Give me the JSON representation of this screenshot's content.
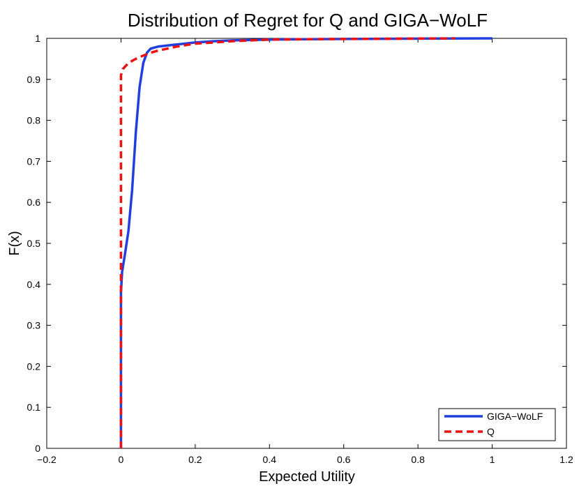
{
  "chart_data": {
    "type": "line",
    "title": "Distribution of Regret for Q and GIGA−WoLF",
    "xlabel": "Expected Utility",
    "ylabel": "F(x)",
    "xlim": [
      -0.2,
      1.2
    ],
    "ylim": [
      0,
      1
    ],
    "x_ticks": [
      -0.2,
      0,
      0.2,
      0.4,
      0.6,
      0.8,
      1,
      1.2
    ],
    "x_tick_labels": [
      "−0.2",
      "0",
      "0.2",
      "0.4",
      "0.6",
      "0.8",
      "1",
      "1.2"
    ],
    "y_ticks": [
      0,
      0.1,
      0.2,
      0.3,
      0.4,
      0.5,
      0.6,
      0.7,
      0.8,
      0.9,
      1
    ],
    "y_tick_labels": [
      "0",
      "0.1",
      "0.2",
      "0.3",
      "0.4",
      "0.5",
      "0.6",
      "0.7",
      "0.8",
      "0.9",
      "1"
    ],
    "grid": false,
    "legend_position": "bottom-right",
    "series": [
      {
        "name": "GIGA−WoLF",
        "color": "#1f3fe0",
        "style": "solid",
        "x": [
          0,
          0,
          0.003,
          0.01,
          0.02,
          0.03,
          0.04,
          0.05,
          0.06,
          0.07,
          0.08,
          0.1,
          0.15,
          0.2,
          0.25,
          0.3,
          0.4,
          0.5,
          0.7,
          1
        ],
        "y": [
          0,
          0.38,
          0.43,
          0.47,
          0.53,
          0.63,
          0.77,
          0.88,
          0.94,
          0.965,
          0.975,
          0.98,
          0.985,
          0.99,
          0.993,
          0.995,
          0.997,
          0.998,
          0.999,
          1
        ]
      },
      {
        "name": "Q",
        "color": "#ee1111",
        "style": "dashed",
        "x": [
          0,
          0,
          0,
          0.005,
          0.02,
          0.04,
          0.06,
          0.08,
          0.1,
          0.15,
          0.2,
          0.25,
          0.3,
          0.4,
          0.5,
          0.7,
          0.9
        ],
        "y": [
          0,
          0.45,
          0.91,
          0.925,
          0.94,
          0.95,
          0.958,
          0.965,
          0.97,
          0.98,
          0.987,
          0.99,
          0.993,
          0.997,
          0.998,
          0.999,
          1
        ]
      }
    ]
  }
}
